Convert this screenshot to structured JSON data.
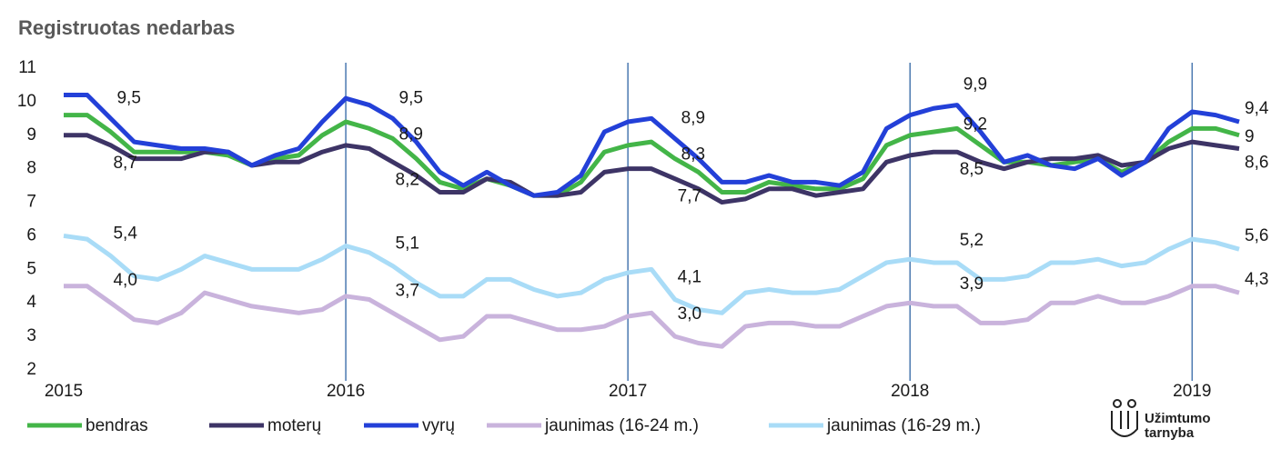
{
  "chart_data": {
    "type": "line",
    "title": "Registruotas nedarbas",
    "categories": [
      "2015",
      null,
      null,
      null,
      null,
      null,
      null,
      null,
      null,
      null,
      null,
      null,
      "2016",
      null,
      null,
      null,
      null,
      null,
      null,
      null,
      null,
      null,
      null,
      null,
      "2017",
      null,
      null,
      null,
      null,
      null,
      null,
      null,
      null,
      null,
      null,
      null,
      "2018",
      null,
      null,
      null,
      null,
      null,
      null,
      null,
      null,
      null,
      null,
      null,
      "2019",
      null,
      null
    ],
    "ylim": [
      2,
      11
    ],
    "yticks": [
      2,
      3,
      4,
      5,
      6,
      7,
      8,
      9,
      10,
      11
    ],
    "series": [
      {
        "name": "bendras",
        "color": "#43b548",
        "values": [
          9.6,
          9.6,
          9.1,
          8.5,
          8.5,
          8.5,
          8.5,
          8.4,
          8.1,
          8.3,
          8.4,
          9.0,
          9.4,
          9.2,
          8.9,
          8.3,
          7.6,
          7.4,
          7.7,
          7.5,
          7.2,
          7.2,
          7.6,
          8.5,
          8.7,
          8.8,
          8.3,
          7.9,
          7.3,
          7.3,
          7.6,
          7.5,
          7.4,
          7.4,
          7.7,
          8.7,
          9.0,
          9.1,
          9.2,
          8.7,
          8.2,
          8.2,
          8.1,
          8.2,
          8.3,
          7.9,
          8.2,
          8.8,
          9.2,
          9.2,
          9
        ],
        "value_labels": [
          null,
          null,
          null,
          null,
          null,
          null,
          null,
          null,
          null,
          null,
          null,
          null,
          null,
          null,
          "8,9",
          null,
          null,
          null,
          null,
          null,
          null,
          null,
          null,
          null,
          null,
          null,
          "8,3",
          null,
          null,
          null,
          null,
          null,
          null,
          null,
          null,
          null,
          null,
          null,
          "9,2",
          null,
          null,
          null,
          null,
          null,
          null,
          null,
          null,
          null,
          null,
          null,
          "9"
        ]
      },
      {
        "name": "moterų",
        "color": "#3d3466",
        "values": [
          9.0,
          9.0,
          8.7,
          8.3,
          8.3,
          8.3,
          8.5,
          8.5,
          8.1,
          8.2,
          8.2,
          8.5,
          8.7,
          8.6,
          8.2,
          7.8,
          7.3,
          7.3,
          7.7,
          7.6,
          7.2,
          7.2,
          7.3,
          7.9,
          8.0,
          8.0,
          7.7,
          7.4,
          7.0,
          7.1,
          7.4,
          7.4,
          7.2,
          7.3,
          7.4,
          8.2,
          8.4,
          8.5,
          8.5,
          8.2,
          8.0,
          8.2,
          8.3,
          8.3,
          8.4,
          8.1,
          8.2,
          8.6,
          8.8,
          8.7,
          8.6
        ],
        "value_labels": [
          null,
          null,
          "8,7",
          null,
          null,
          null,
          null,
          null,
          null,
          null,
          null,
          null,
          null,
          null,
          "8,2",
          null,
          null,
          null,
          null,
          null,
          null,
          null,
          null,
          null,
          null,
          null,
          "7,7",
          null,
          null,
          null,
          null,
          null,
          null,
          null,
          null,
          null,
          null,
          null,
          "8,5",
          null,
          null,
          null,
          null,
          null,
          null,
          null,
          null,
          null,
          null,
          null,
          "8,6"
        ]
      },
      {
        "name": "vyrų",
        "color": "#2340d8",
        "values": [
          10.2,
          10.2,
          9.5,
          8.8,
          8.7,
          8.6,
          8.6,
          8.5,
          8.1,
          8.4,
          8.6,
          9.4,
          10.1,
          9.9,
          9.5,
          8.8,
          7.9,
          7.5,
          7.9,
          7.5,
          7.2,
          7.3,
          7.8,
          9.1,
          9.4,
          9.5,
          8.9,
          8.3,
          7.6,
          7.6,
          7.8,
          7.6,
          7.6,
          7.5,
          7.9,
          9.2,
          9.6,
          9.8,
          9.9,
          9.1,
          8.2,
          8.4,
          8.1,
          8.0,
          8.3,
          7.8,
          8.2,
          9.2,
          9.7,
          9.6,
          9.4
        ],
        "value_labels": [
          null,
          null,
          "9,5",
          null,
          null,
          null,
          null,
          null,
          null,
          null,
          null,
          null,
          null,
          null,
          "9,5",
          null,
          null,
          null,
          null,
          null,
          null,
          null,
          null,
          null,
          null,
          null,
          "8,9",
          null,
          null,
          null,
          null,
          null,
          null,
          null,
          null,
          null,
          null,
          null,
          "9,9",
          null,
          null,
          null,
          null,
          null,
          null,
          null,
          null,
          null,
          null,
          null,
          "9,4"
        ]
      },
      {
        "name": "jaunimas (16-24 m.)",
        "color": "#c9b3dc",
        "values": [
          4.5,
          4.5,
          4.0,
          3.5,
          3.4,
          3.7,
          4.3,
          4.1,
          3.9,
          3.8,
          3.7,
          3.8,
          4.2,
          4.1,
          3.7,
          3.3,
          2.9,
          3.0,
          3.6,
          3.6,
          3.4,
          3.2,
          3.2,
          3.3,
          3.6,
          3.7,
          3.0,
          2.8,
          2.7,
          3.3,
          3.4,
          3.4,
          3.3,
          3.3,
          3.6,
          3.9,
          4.0,
          3.9,
          3.9,
          3.4,
          3.4,
          3.5,
          4.0,
          4.0,
          4.2,
          4.0,
          4.0,
          4.2,
          4.5,
          4.5,
          4.3
        ],
        "value_labels": [
          null,
          null,
          "4,0",
          null,
          null,
          null,
          null,
          null,
          null,
          null,
          null,
          null,
          null,
          null,
          "3,7",
          null,
          null,
          null,
          null,
          null,
          null,
          null,
          null,
          null,
          null,
          null,
          "3,0",
          null,
          null,
          null,
          null,
          null,
          null,
          null,
          null,
          null,
          null,
          null,
          "3,9",
          null,
          null,
          null,
          null,
          null,
          null,
          null,
          null,
          null,
          null,
          null,
          "4,3"
        ]
      },
      {
        "name": "jaunimas (16-29 m.)",
        "color": "#a9dcf7",
        "values": [
          6.0,
          5.9,
          5.4,
          4.8,
          4.7,
          5.0,
          5.4,
          5.2,
          5.0,
          5.0,
          5.0,
          5.3,
          5.7,
          5.5,
          5.1,
          4.6,
          4.2,
          4.2,
          4.7,
          4.7,
          4.4,
          4.2,
          4.3,
          4.7,
          4.9,
          5.0,
          4.1,
          3.8,
          3.7,
          4.3,
          4.4,
          4.3,
          4.3,
          4.4,
          4.8,
          5.2,
          5.3,
          5.2,
          5.2,
          4.7,
          4.7,
          4.8,
          5.2,
          5.2,
          5.3,
          5.1,
          5.2,
          5.6,
          5.9,
          5.8,
          5.6
        ],
        "value_labels": [
          null,
          null,
          "5,4",
          null,
          null,
          null,
          null,
          null,
          null,
          null,
          null,
          null,
          null,
          null,
          "5,1",
          null,
          null,
          null,
          null,
          null,
          null,
          null,
          null,
          null,
          null,
          null,
          "4,1",
          null,
          null,
          null,
          null,
          null,
          null,
          null,
          null,
          null,
          null,
          null,
          "5,2",
          null,
          null,
          null,
          null,
          null,
          null,
          null,
          null,
          null,
          null,
          null,
          "5,6"
        ]
      }
    ]
  },
  "logo": {
    "line1": "Užimtumo",
    "line2": "tarnyba"
  }
}
